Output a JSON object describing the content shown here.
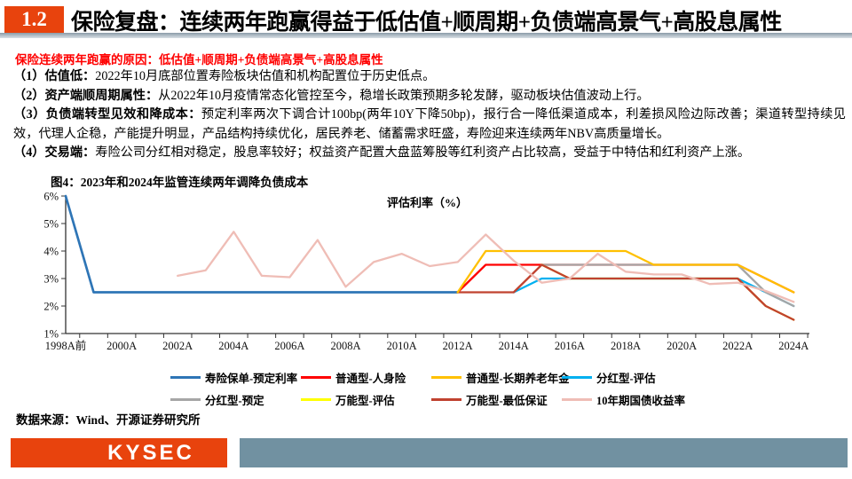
{
  "header": {
    "section_number": "1.2",
    "title": "保险复盘：连续两年跑赢得益于低估值+顺周期+负债端高景气+高股息属性"
  },
  "subtitle": "保险连续两年跑赢的原因：低估值+顺周期+负债端高景气+高股息属性",
  "body": {
    "points": [
      {
        "num": "（1）",
        "label": "估值低：",
        "text": "2022年10月底部位置寿险板块估值和机构配置位于历史低点。"
      },
      {
        "num": "（2）",
        "label": "资产端顺周期属性：",
        "text": "从2022年10月疫情常态化管控至今，稳增长政策预期多轮发酵，驱动板块估值波动上行。"
      },
      {
        "num": "（3）",
        "label": "负债端转型见效和降成本：",
        "text": "预定利率两次下调合计100bp(两年10Y下降50bp)，报行合一降低渠道成本，利差损风险边际改善；渠道转型持续见效，代理人企稳，产能提升明显，产品结构持续优化，居民养老、储蓄需求旺盛，寿险迎来连续两年NBV高质量增长。"
      },
      {
        "num": "（4）",
        "label": "交易端：",
        "text": "寿险公司分红相对稳定，股息率较好；权益资产配置大盘蓝筹股等红利资产占比较高，受益于中特估和红利资产上涨。"
      }
    ]
  },
  "figure": {
    "title": "图4：2023年和2024年监管连续两年调降负债成本",
    "source": "数据来源：Wind、开源证券研究所"
  },
  "chart_data": {
    "type": "line",
    "title": "图4：2023年和2024年监管连续两年调降负债成本",
    "ylabel": "评估利率（%）",
    "ylim": [
      1,
      6
    ],
    "grid": false,
    "legend_position": "bottom",
    "y_ticks": [
      "6%",
      "5%",
      "4%",
      "3%",
      "2%",
      "1%"
    ],
    "x_tick_years": [
      1998,
      2000,
      2002,
      2004,
      2006,
      2008,
      2010,
      2012,
      2014,
      2016,
      2018,
      2020,
      2022,
      2024
    ],
    "x_tick_labels": [
      "1998A前",
      "2000A",
      "2002A",
      "2004A",
      "2006A",
      "2008A",
      "2010A",
      "2012A",
      "2014A",
      "2016A",
      "2018A",
      "2020A",
      "2022A",
      "2024A"
    ],
    "series": [
      {
        "name": "寿险保单-预定利率",
        "color": "#2E75B6",
        "points": [
          [
            1998,
            6.0
          ],
          [
            1999,
            2.5
          ],
          [
            2012,
            2.5
          ]
        ]
      },
      {
        "name": "普通型-人身险",
        "color": "#FF0000",
        "points": [
          [
            2012,
            2.5
          ],
          [
            2013,
            3.5
          ],
          [
            2022,
            3.5
          ],
          [
            2023,
            3.0
          ],
          [
            2024,
            2.5
          ]
        ]
      },
      {
        "name": "普通型-长期养老年金",
        "color": "#FFC000",
        "points": [
          [
            2012,
            2.5
          ],
          [
            2013,
            4.0
          ],
          [
            2018,
            4.0
          ],
          [
            2019,
            3.5
          ],
          [
            2022,
            3.5
          ],
          [
            2023,
            3.0
          ],
          [
            2024,
            2.5
          ]
        ]
      },
      {
        "name": "分红型-评估",
        "color": "#00B0F0",
        "points": [
          [
            2014,
            2.5
          ],
          [
            2015,
            3.0
          ],
          [
            2022,
            3.0
          ],
          [
            2023,
            2.5
          ],
          [
            2024,
            2.0
          ]
        ]
      },
      {
        "name": "分红型-预定",
        "color": "#A6A6A6",
        "points": [
          [
            2015,
            3.5
          ],
          [
            2022,
            3.5
          ],
          [
            2023,
            2.5
          ],
          [
            2024,
            2.0
          ]
        ]
      },
      {
        "name": "万能型-评估",
        "color": "#FFFF00",
        "points": [
          [
            2015,
            3.5
          ],
          [
            2016,
            3.0
          ],
          [
            2022,
            3.0
          ],
          [
            2023,
            2.0
          ],
          [
            2024,
            1.5
          ]
        ]
      },
      {
        "name": "万能型-最低保证",
        "color": "#C0422F",
        "points": [
          [
            2012,
            2.5
          ],
          [
            2014,
            2.5
          ],
          [
            2015,
            3.5
          ],
          [
            2016,
            3.0
          ],
          [
            2022,
            3.0
          ],
          [
            2023,
            2.0
          ],
          [
            2024,
            1.5
          ]
        ]
      },
      {
        "name": "10年期国债收益率",
        "color": "#EFBDB6",
        "points": [
          [
            2002,
            3.1
          ],
          [
            2003,
            3.3
          ],
          [
            2004,
            4.7
          ],
          [
            2005,
            3.1
          ],
          [
            2006,
            3.05
          ],
          [
            2007,
            4.4
          ],
          [
            2008,
            2.7
          ],
          [
            2009,
            3.6
          ],
          [
            2010,
            3.9
          ],
          [
            2011,
            3.45
          ],
          [
            2012,
            3.6
          ],
          [
            2013,
            4.6
          ],
          [
            2014,
            3.65
          ],
          [
            2015,
            2.85
          ],
          [
            2016,
            3.0
          ],
          [
            2017,
            3.9
          ],
          [
            2018,
            3.25
          ],
          [
            2019,
            3.15
          ],
          [
            2020,
            3.15
          ],
          [
            2021,
            2.8
          ],
          [
            2022,
            2.85
          ],
          [
            2023,
            2.55
          ],
          [
            2024,
            2.15
          ]
        ]
      }
    ]
  },
  "footer": {
    "logo_text": "KYSEC",
    "brand_color": "#E8430D",
    "bar_color": "#7191A1"
  }
}
